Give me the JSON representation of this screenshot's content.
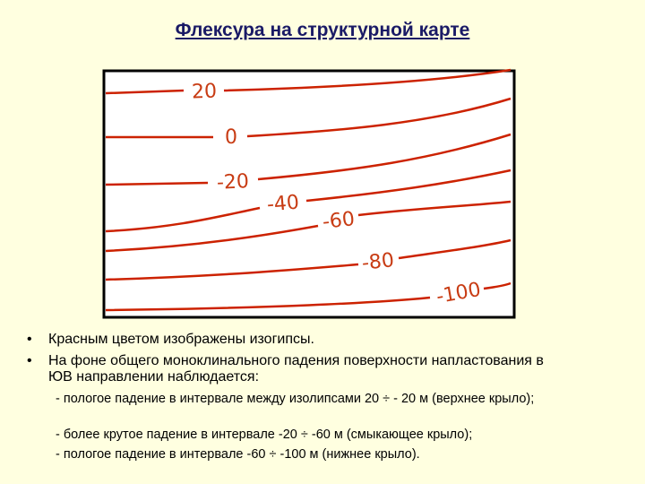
{
  "title": "Флексура на структурной карте",
  "map": {
    "contour_labels": [
      "20",
      "0",
      "-20",
      "-40",
      "-60",
      "-80",
      "-100"
    ]
  },
  "bullets": [
    "Красным цветом изображены изогипсы.",
    "На фоне общего  моноклинального падения поверхности напластования в ЮВ направлении наблюдается:"
  ],
  "sub_items": [
    "- пологое падение в интервале между изолипсами 20 ÷ - 20 м (верхнее крыло);",
    "- более крутое падение в интервале -20 ÷ -60 м (смыкающее крыло);",
    "- пологое падение в интервале -60 ÷ -100 м (нижнее крыло)."
  ]
}
